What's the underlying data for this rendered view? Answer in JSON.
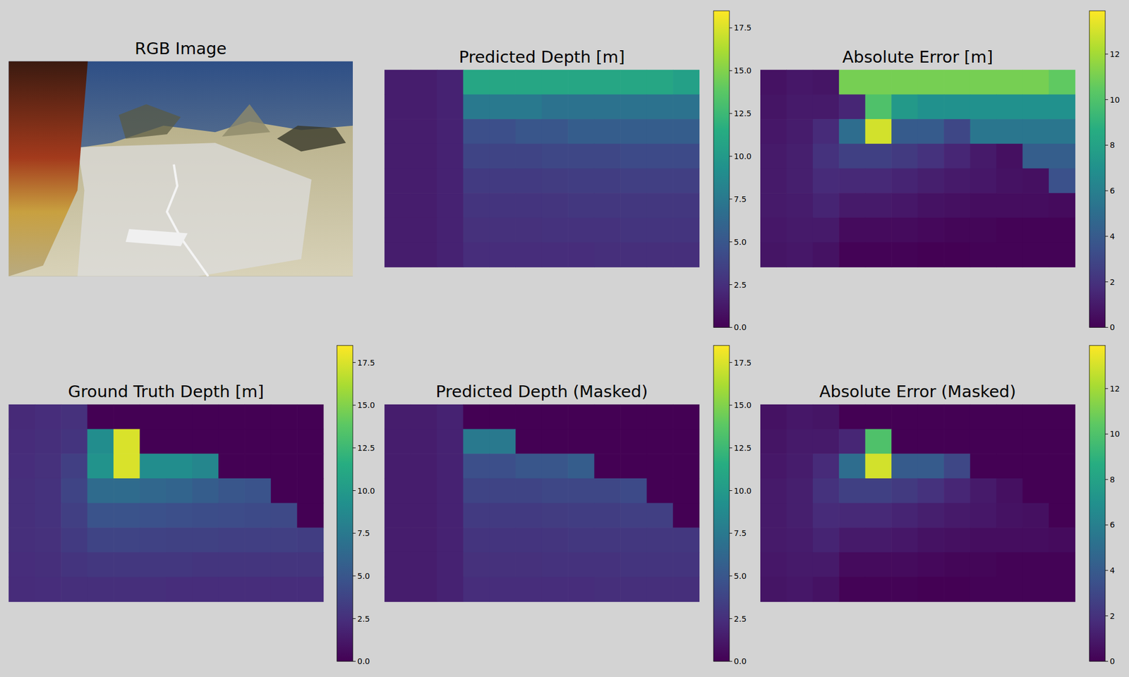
{
  "chart_data": [
    {
      "type": "image",
      "title": "RGB Image"
    },
    {
      "type": "heatmap",
      "title": "Predicted Depth [m]",
      "colorbar_range": [
        0,
        18.5
      ],
      "colorbar_ticks": [
        {
          "value": 0,
          "label": "0.0"
        },
        2.5,
        {
          "value": 5,
          "label": "5.0"
        },
        7.5,
        {
          "value": 10,
          "label": "10.0"
        },
        12.5,
        {
          "value": 15,
          "label": "15.0"
        },
        17.5
      ],
      "cells": [
        [
          1.5,
          1.5,
          1.8,
          11.0,
          11.0,
          11.0,
          11.0,
          11.0,
          11.0,
          11.0,
          11.0,
          10.5
        ],
        [
          1.5,
          1.5,
          1.8,
          7.5,
          7.5,
          7.5,
          7.0,
          7.0,
          7.0,
          7.0,
          7.0,
          7.0
        ],
        [
          1.5,
          1.5,
          1.8,
          4.5,
          4.5,
          5.0,
          5.0,
          5.5,
          5.5,
          5.5,
          5.5,
          5.5
        ],
        [
          1.5,
          1.5,
          1.8,
          3.8,
          3.8,
          3.8,
          4.0,
          4.0,
          4.0,
          4.2,
          4.2,
          4.2
        ],
        [
          1.5,
          1.5,
          1.8,
          3.2,
          3.2,
          3.2,
          3.3,
          3.4,
          3.4,
          3.5,
          3.5,
          3.5
        ],
        [
          1.5,
          1.5,
          1.8,
          2.8,
          2.8,
          2.8,
          2.9,
          3.0,
          3.0,
          3.0,
          3.0,
          3.0
        ],
        [
          1.5,
          1.5,
          1.8,
          2.6,
          2.6,
          2.6,
          2.7,
          2.7,
          2.7,
          2.8,
          2.8,
          2.8
        ],
        [
          1.5,
          1.5,
          1.8,
          2.4,
          2.4,
          2.4,
          2.4,
          2.4,
          2.5,
          2.5,
          2.5,
          2.5
        ]
      ]
    },
    {
      "type": "heatmap",
      "title": "Absolute Error [m]",
      "colorbar_range": [
        0,
        13.9
      ],
      "colorbar_ticks": [
        0,
        2,
        4,
        6,
        8,
        10,
        12
      ],
      "cells": [
        [
          0.7,
          0.9,
          0.8,
          11.0,
          11.0,
          11.0,
          11.0,
          11.0,
          11.0,
          11.0,
          11.0,
          10.5
        ],
        [
          0.8,
          1.0,
          1.0,
          1.5,
          10.0,
          7.5,
          7.0,
          7.0,
          7.0,
          7.0,
          7.0,
          7.0
        ],
        [
          0.9,
          1.1,
          1.7,
          5.0,
          13.0,
          4.0,
          4.0,
          3.0,
          5.5,
          5.5,
          5.5,
          5.5
        ],
        [
          1.0,
          1.2,
          2.0,
          2.7,
          2.7,
          2.4,
          2.0,
          1.5,
          1.0,
          0.6,
          4.2,
          4.2
        ],
        [
          1.0,
          1.2,
          1.7,
          1.6,
          1.6,
          1.4,
          1.2,
          1.0,
          0.9,
          0.7,
          0.6,
          3.5
        ],
        [
          1.0,
          1.1,
          1.4,
          1.0,
          1.0,
          0.9,
          0.7,
          0.6,
          0.5,
          0.5,
          0.5,
          0.4
        ],
        [
          0.9,
          1.0,
          1.0,
          0.4,
          0.4,
          0.4,
          0.3,
          0.2,
          0.2,
          0.1,
          0.1,
          0.1
        ],
        [
          0.8,
          0.9,
          0.7,
          0.1,
          0.1,
          0.1,
          0,
          0,
          0.1,
          0.1,
          0.1,
          0.1
        ]
      ]
    },
    {
      "type": "heatmap",
      "title": "Ground Truth Depth [m]",
      "colorbar_range": [
        0,
        18.5
      ],
      "colorbar_ticks": [
        {
          "value": 0,
          "label": "0.0"
        },
        2.5,
        {
          "value": 5,
          "label": "5.0"
        },
        7.5,
        {
          "value": 10,
          "label": "10.0"
        },
        12.5,
        {
          "value": 15,
          "label": "15.0"
        },
        17.5
      ],
      "cells": [
        [
          2.2,
          2.4,
          2.6,
          0,
          0,
          0,
          0,
          0,
          0,
          0,
          0,
          0
        ],
        [
          2.3,
          2.5,
          2.8,
          9.0,
          17.5,
          0,
          0,
          0,
          0,
          0,
          0,
          0
        ],
        [
          2.4,
          2.6,
          3.5,
          9.5,
          17.5,
          9.0,
          9.0,
          8.5,
          0,
          0,
          0,
          0
        ],
        [
          2.5,
          2.7,
          3.8,
          6.5,
          6.5,
          6.2,
          6.0,
          5.5,
          5.0,
          4.8,
          0,
          0
        ],
        [
          2.5,
          2.7,
          3.5,
          4.8,
          4.8,
          4.6,
          4.5,
          4.4,
          4.3,
          4.2,
          4.1,
          0
        ],
        [
          2.5,
          2.6,
          3.2,
          3.8,
          3.8,
          3.7,
          3.6,
          3.6,
          3.5,
          3.5,
          3.5,
          3.4
        ],
        [
          2.4,
          2.5,
          2.8,
          3.0,
          3.0,
          3.0,
          3.0,
          2.9,
          2.9,
          2.9,
          2.9,
          2.9
        ],
        [
          2.3,
          2.4,
          2.5,
          2.5,
          2.5,
          2.5,
          2.4,
          2.4,
          2.4,
          2.4,
          2.4,
          2.4
        ]
      ]
    },
    {
      "type": "heatmap",
      "title": "Predicted Depth (Masked)",
      "colorbar_range": [
        0,
        18.5
      ],
      "colorbar_ticks": [
        {
          "value": 0,
          "label": "0.0"
        },
        2.5,
        {
          "value": 5,
          "label": "5.0"
        },
        7.5,
        {
          "value": 10,
          "label": "10.0"
        },
        12.5,
        {
          "value": 15,
          "label": "15.0"
        },
        17.5
      ],
      "cells": [
        [
          1.5,
          1.5,
          1.8,
          0,
          0,
          0,
          0,
          0,
          0,
          0,
          0,
          0
        ],
        [
          1.5,
          1.5,
          1.8,
          7.5,
          7.5,
          0,
          0,
          0,
          0,
          0,
          0,
          0
        ],
        [
          1.5,
          1.5,
          1.8,
          4.5,
          4.5,
          5.0,
          5.0,
          5.5,
          0,
          0,
          0,
          0
        ],
        [
          1.5,
          1.5,
          1.8,
          3.8,
          3.8,
          3.8,
          4.0,
          4.0,
          4.0,
          4.2,
          0,
          0
        ],
        [
          1.5,
          1.5,
          1.8,
          3.2,
          3.2,
          3.2,
          3.3,
          3.4,
          3.4,
          3.5,
          3.5,
          0
        ],
        [
          1.5,
          1.5,
          1.8,
          2.8,
          2.8,
          2.8,
          2.9,
          3.0,
          3.0,
          3.0,
          3.0,
          3.0
        ],
        [
          1.5,
          1.5,
          1.8,
          2.6,
          2.6,
          2.6,
          2.7,
          2.7,
          2.7,
          2.8,
          2.8,
          2.8
        ],
        [
          1.5,
          1.5,
          1.8,
          2.4,
          2.4,
          2.4,
          2.4,
          2.4,
          2.5,
          2.5,
          2.5,
          2.5
        ]
      ]
    },
    {
      "type": "heatmap",
      "title": "Absolute Error (Masked)",
      "colorbar_range": [
        0,
        13.9
      ],
      "colorbar_ticks": [
        0,
        2,
        4,
        6,
        8,
        10,
        12
      ],
      "cells": [
        [
          0.7,
          0.9,
          0.8,
          0,
          0,
          0,
          0,
          0,
          0,
          0,
          0,
          0
        ],
        [
          0.8,
          1.0,
          1.0,
          1.5,
          10.0,
          0,
          0,
          0,
          0,
          0,
          0,
          0
        ],
        [
          0.9,
          1.1,
          1.7,
          5.0,
          13.0,
          4.0,
          4.0,
          3.0,
          0,
          0,
          0,
          0
        ],
        [
          1.0,
          1.2,
          2.0,
          2.7,
          2.7,
          2.4,
          2.0,
          1.5,
          1.0,
          0.6,
          0,
          0
        ],
        [
          1.0,
          1.2,
          1.7,
          1.6,
          1.6,
          1.4,
          1.2,
          1.0,
          0.9,
          0.7,
          0.6,
          0
        ],
        [
          1.0,
          1.1,
          1.4,
          1.0,
          1.0,
          0.9,
          0.7,
          0.6,
          0.5,
          0.5,
          0.5,
          0.4
        ],
        [
          0.9,
          1.0,
          1.0,
          0.4,
          0.4,
          0.4,
          0.3,
          0.2,
          0.2,
          0.1,
          0.1,
          0.1
        ],
        [
          0.8,
          0.9,
          0.7,
          0.1,
          0.1,
          0.1,
          0,
          0,
          0.1,
          0.1,
          0.1,
          0.1
        ]
      ]
    }
  ]
}
